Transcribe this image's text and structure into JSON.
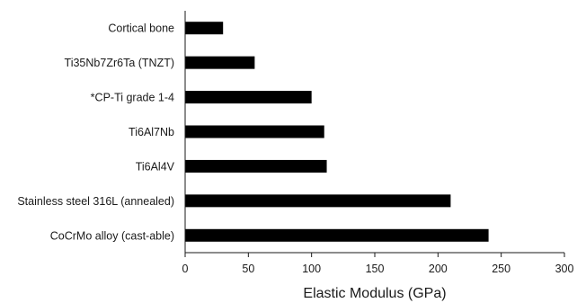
{
  "chart_data": {
    "type": "bar",
    "orientation": "horizontal",
    "categories": [
      "Cortical bone",
      "Ti35Nb7Zr6Ta (TNZT)",
      "*CP-Ti grade 1-4",
      "Ti6Al7Nb",
      "Ti6Al4V",
      "Stainless steel 316L (annealed)",
      "CoCrMo alloy (cast-able)"
    ],
    "values": [
      30,
      55,
      100,
      110,
      112,
      210,
      240
    ],
    "xlabel": "Elastic Modulus (GPa)",
    "ylabel": "",
    "xlim": [
      0,
      300
    ],
    "xticks": [
      0,
      50,
      100,
      150,
      200,
      250,
      300
    ],
    "grid": false,
    "legend": "none",
    "bar_color": "#000000"
  }
}
